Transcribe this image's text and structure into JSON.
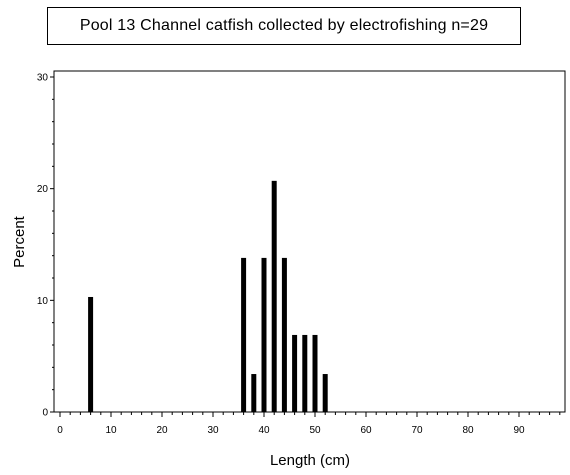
{
  "chart_data": {
    "type": "bar",
    "title": "Pool 13 Channel catfish collected by electrofishing n=29",
    "xlabel": "Length (cm)",
    "ylabel": "Percent",
    "xlim": [
      0,
      98
    ],
    "ylim": [
      0,
      30
    ],
    "x_ticks": [
      0,
      10,
      20,
      30,
      40,
      50,
      60,
      70,
      80,
      90
    ],
    "y_ticks": [
      0,
      10,
      20,
      30
    ],
    "x_minor_step": 2,
    "y_minor_step": 2,
    "x": [
      6,
      36,
      38,
      40,
      42,
      44,
      46,
      48,
      50,
      52
    ],
    "values": [
      10.3,
      13.8,
      3.4,
      13.8,
      20.7,
      13.8,
      6.9,
      6.9,
      6.9,
      3.4
    ],
    "bar_color": "#000000",
    "grid": false,
    "legend": "none"
  }
}
